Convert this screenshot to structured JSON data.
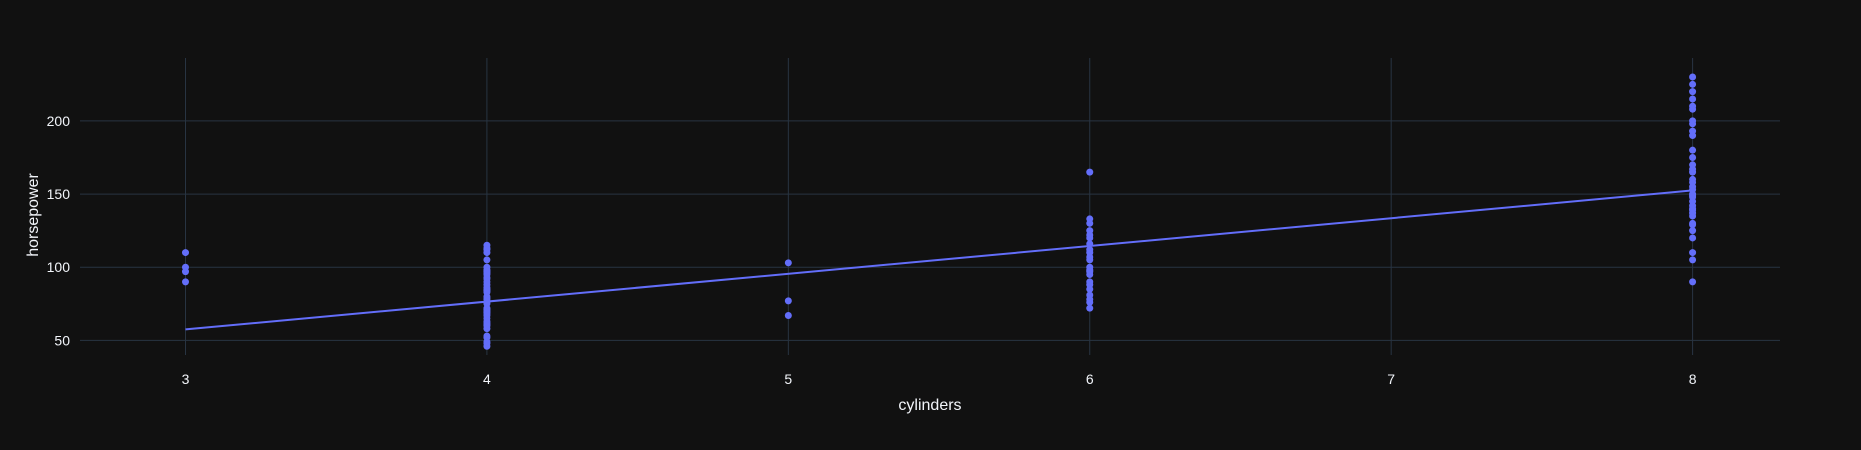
{
  "chart_data": {
    "type": "scatter",
    "title": "",
    "xlabel": "cylinders",
    "ylabel": "horsepower",
    "xlim": [
      2.65,
      8.29
    ],
    "ylim": [
      40,
      243
    ],
    "xticks": [
      3,
      4,
      5,
      6,
      7,
      8
    ],
    "yticks": [
      50,
      100,
      150,
      200
    ],
    "grid": true,
    "colors": {
      "background": "#111111",
      "grid": "#283442",
      "series": "#636efa",
      "text": "#f2f5fa"
    },
    "series": [
      {
        "mode": "markers",
        "points": [
          [
            3,
            110
          ],
          [
            3,
            100
          ],
          [
            3,
            97
          ],
          [
            3,
            90
          ],
          [
            4,
            115
          ],
          [
            4,
            113
          ],
          [
            4,
            112
          ],
          [
            4,
            110
          ],
          [
            4,
            105
          ],
          [
            4,
            100
          ],
          [
            4,
            98
          ],
          [
            4,
            97
          ],
          [
            4,
            96
          ],
          [
            4,
            95
          ],
          [
            4,
            93
          ],
          [
            4,
            92
          ],
          [
            4,
            90
          ],
          [
            4,
            88
          ],
          [
            4,
            86
          ],
          [
            4,
            85
          ],
          [
            4,
            84
          ],
          [
            4,
            83
          ],
          [
            4,
            80
          ],
          [
            4,
            79
          ],
          [
            4,
            78
          ],
          [
            4,
            76
          ],
          [
            4,
            75
          ],
          [
            4,
            72
          ],
          [
            4,
            71
          ],
          [
            4,
            70
          ],
          [
            4,
            69
          ],
          [
            4,
            68
          ],
          [
            4,
            67
          ],
          [
            4,
            65
          ],
          [
            4,
            63
          ],
          [
            4,
            62
          ],
          [
            4,
            61
          ],
          [
            4,
            60
          ],
          [
            4,
            58
          ],
          [
            4,
            53
          ],
          [
            4,
            52
          ],
          [
            4,
            49
          ],
          [
            4,
            48
          ],
          [
            4,
            46
          ],
          [
            5,
            103
          ],
          [
            5,
            77
          ],
          [
            5,
            67
          ],
          [
            6,
            165
          ],
          [
            6,
            133
          ],
          [
            6,
            130
          ],
          [
            6,
            125
          ],
          [
            6,
            122
          ],
          [
            6,
            120
          ],
          [
            6,
            116
          ],
          [
            6,
            112
          ],
          [
            6,
            110
          ],
          [
            6,
            107
          ],
          [
            6,
            105
          ],
          [
            6,
            100
          ],
          [
            6,
            98
          ],
          [
            6,
            97
          ],
          [
            6,
            95
          ],
          [
            6,
            90
          ],
          [
            6,
            88
          ],
          [
            6,
            85
          ],
          [
            6,
            81
          ],
          [
            6,
            78
          ],
          [
            6,
            76
          ],
          [
            6,
            72
          ],
          [
            8,
            230
          ],
          [
            8,
            225
          ],
          [
            8,
            220
          ],
          [
            8,
            215
          ],
          [
            8,
            210
          ],
          [
            8,
            208
          ],
          [
            8,
            200
          ],
          [
            8,
            198
          ],
          [
            8,
            193
          ],
          [
            8,
            190
          ],
          [
            8,
            180
          ],
          [
            8,
            175
          ],
          [
            8,
            170
          ],
          [
            8,
            167
          ],
          [
            8,
            165
          ],
          [
            8,
            160
          ],
          [
            8,
            158
          ],
          [
            8,
            155
          ],
          [
            8,
            153
          ],
          [
            8,
            150
          ],
          [
            8,
            149
          ],
          [
            8,
            148
          ],
          [
            8,
            145
          ],
          [
            8,
            142
          ],
          [
            8,
            140
          ],
          [
            8,
            139
          ],
          [
            8,
            137
          ],
          [
            8,
            135
          ],
          [
            8,
            130
          ],
          [
            8,
            129
          ],
          [
            8,
            125
          ],
          [
            8,
            120
          ],
          [
            8,
            110
          ],
          [
            8,
            105
          ],
          [
            8,
            90
          ]
        ]
      },
      {
        "mode": "lines",
        "points": [
          [
            3,
            57.5
          ],
          [
            8,
            152.5
          ]
        ]
      }
    ]
  }
}
